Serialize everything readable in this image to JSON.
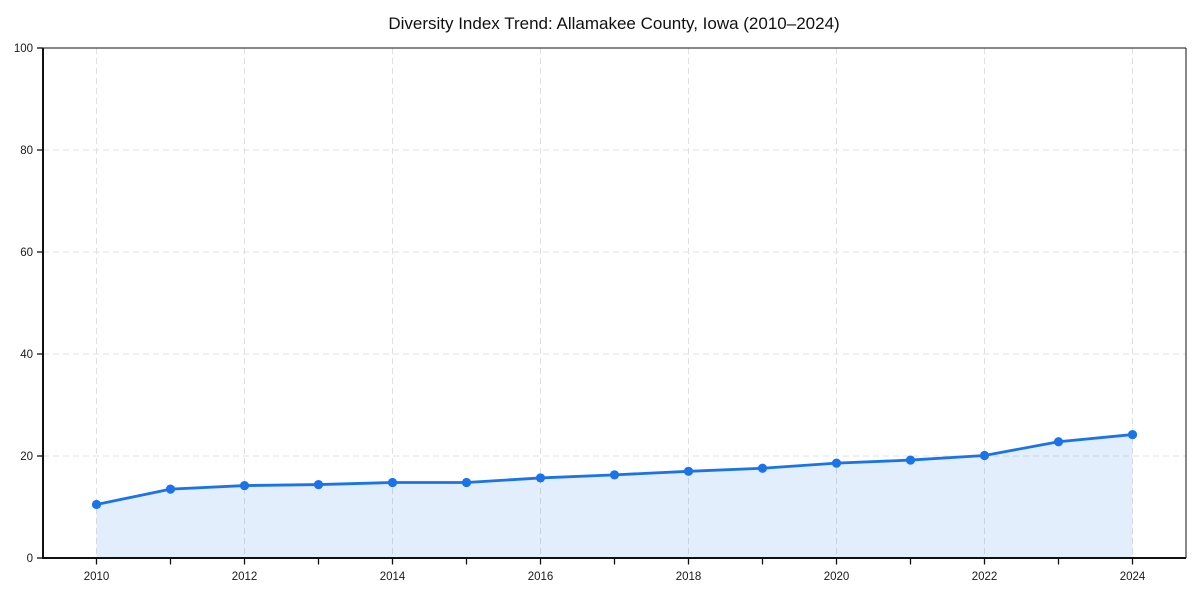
{
  "page": {
    "background": "#ffffff"
  },
  "chart_data": {
    "type": "area",
    "title": "Diversity Index Trend: Allamakee County, Iowa (2010–2024)",
    "xlabel": "",
    "ylabel": "",
    "x": [
      2010,
      2011,
      2012,
      2013,
      2014,
      2015,
      2016,
      2017,
      2018,
      2019,
      2020,
      2021,
      2022,
      2023,
      2024
    ],
    "series": [
      {
        "name": "Diversity Index",
        "values": [
          10.5,
          13.5,
          14.2,
          14.4,
          14.8,
          14.8,
          15.7,
          16.3,
          17.0,
          17.6,
          18.6,
          19.2,
          20.1,
          22.8,
          24.2
        ]
      }
    ],
    "ylim": [
      0,
      100
    ],
    "xlim": [
      2010,
      2024
    ],
    "yticks": [
      0,
      20,
      40,
      60,
      80,
      100
    ],
    "xticks": [
      2010,
      2012,
      2014,
      2016,
      2018,
      2020,
      2022,
      2024
    ],
    "minor_xticks_every_year": true,
    "grid": "dashed",
    "grid_vertical_at_major_xticks": true,
    "legend_position": "none",
    "colors": {
      "line": "#1a73e8",
      "marker": "#1a73e8",
      "fill": "rgba(26,115,232,0.12)",
      "grid": "#e0e0e0",
      "axis": "#111111",
      "text": "#1a1a1a",
      "background": "#ffffff"
    }
  }
}
